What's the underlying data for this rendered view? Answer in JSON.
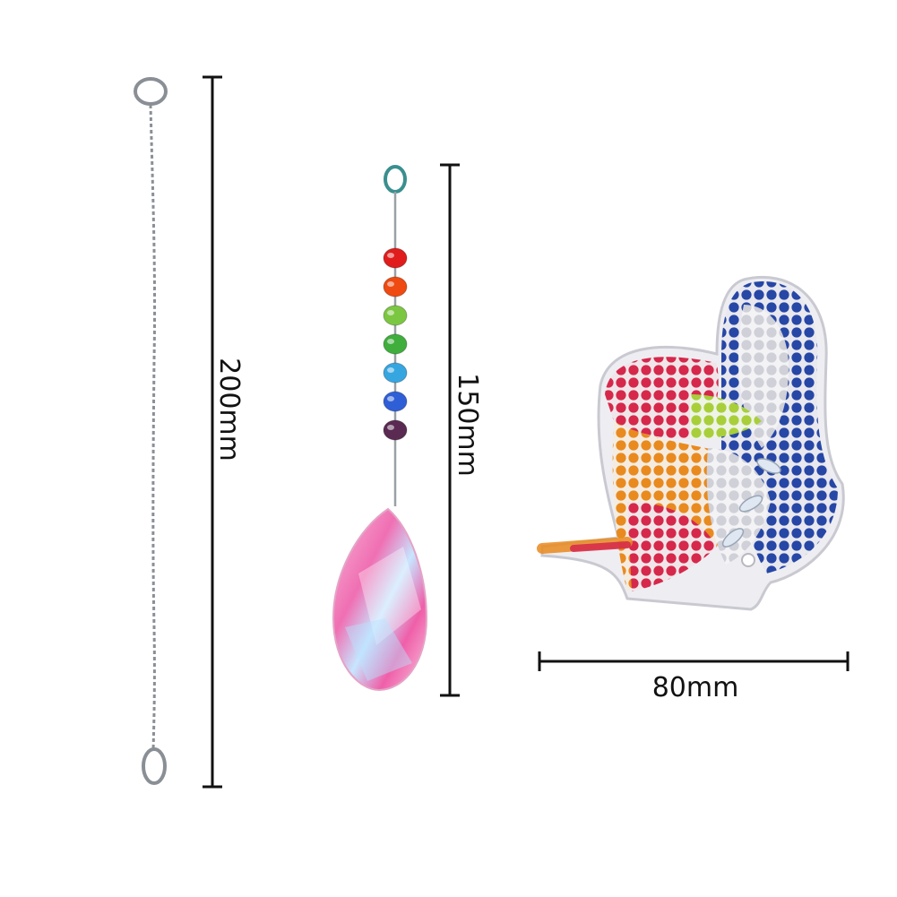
{
  "dimensions": {
    "chain_length": "200mm",
    "pendant_length": "150mm",
    "ornament_width": "80mm"
  },
  "colors": {
    "background": "#ffffff",
    "dimension_line": "#111111",
    "chain": "#8a8f96",
    "bead_colors": [
      "#e01c1c",
      "#ee4a12",
      "#7cc742",
      "#3fae3c",
      "#36a6e0",
      "#2f5fd6",
      "#5a2a52"
    ],
    "prism": "#f27ab9",
    "butterfly_blue": "#2747a6",
    "butterfly_red": "#d6284b",
    "butterfly_orange": "#e98a1f",
    "butterfly_silver": "#d9d9df"
  },
  "items": [
    {
      "name": "extension-chain",
      "icon": "chain-icon"
    },
    {
      "name": "crystal-pendant",
      "icon": "crystal-drop-icon"
    },
    {
      "name": "diamond-painting-butterfly",
      "icon": "butterfly-icon"
    }
  ]
}
